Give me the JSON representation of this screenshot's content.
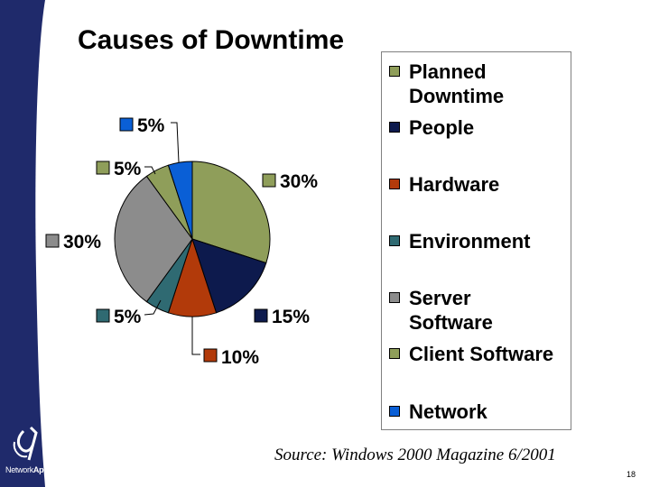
{
  "slide": {
    "title": "Causes of Downtime",
    "source": "Source:  Windows 2000 Magazine 6/2001",
    "page_number": "18",
    "logo_text_regular": "Network",
    "logo_text_bold": "Appliance",
    "logo_mark": "®"
  },
  "colors": {
    "sidebar": "#1f2a6b",
    "sidebar_curve": "#ffffff"
  },
  "chart_data": {
    "type": "pie",
    "title": "",
    "slices": [
      {
        "label": "Planned Downtime",
        "value": 30,
        "data_label": "30%",
        "color": "#8f9e5a"
      },
      {
        "label": "People",
        "value": 15,
        "data_label": "15%",
        "color": "#0d1a4d"
      },
      {
        "label": "Hardware",
        "value": 10,
        "data_label": "10%",
        "color": "#b23a0a"
      },
      {
        "label": "Environment",
        "value": 5,
        "data_label": "5%",
        "color": "#2f6a72"
      },
      {
        "label": "Server Software",
        "value": 30,
        "data_label": "30%",
        "color": "#8c8c8c"
      },
      {
        "label": "Client Software",
        "value": 5,
        "data_label": "5%",
        "color": "#8f9e5a"
      },
      {
        "label": "Network",
        "value": 5,
        "data_label": "5%",
        "color": "#0a5fd6"
      }
    ],
    "legend_labels": [
      "Planned\nDowntime",
      "People",
      "Hardware",
      "Environment",
      "Server\nSoftware",
      "Client Software",
      "Network"
    ],
    "legend_position": "right"
  }
}
